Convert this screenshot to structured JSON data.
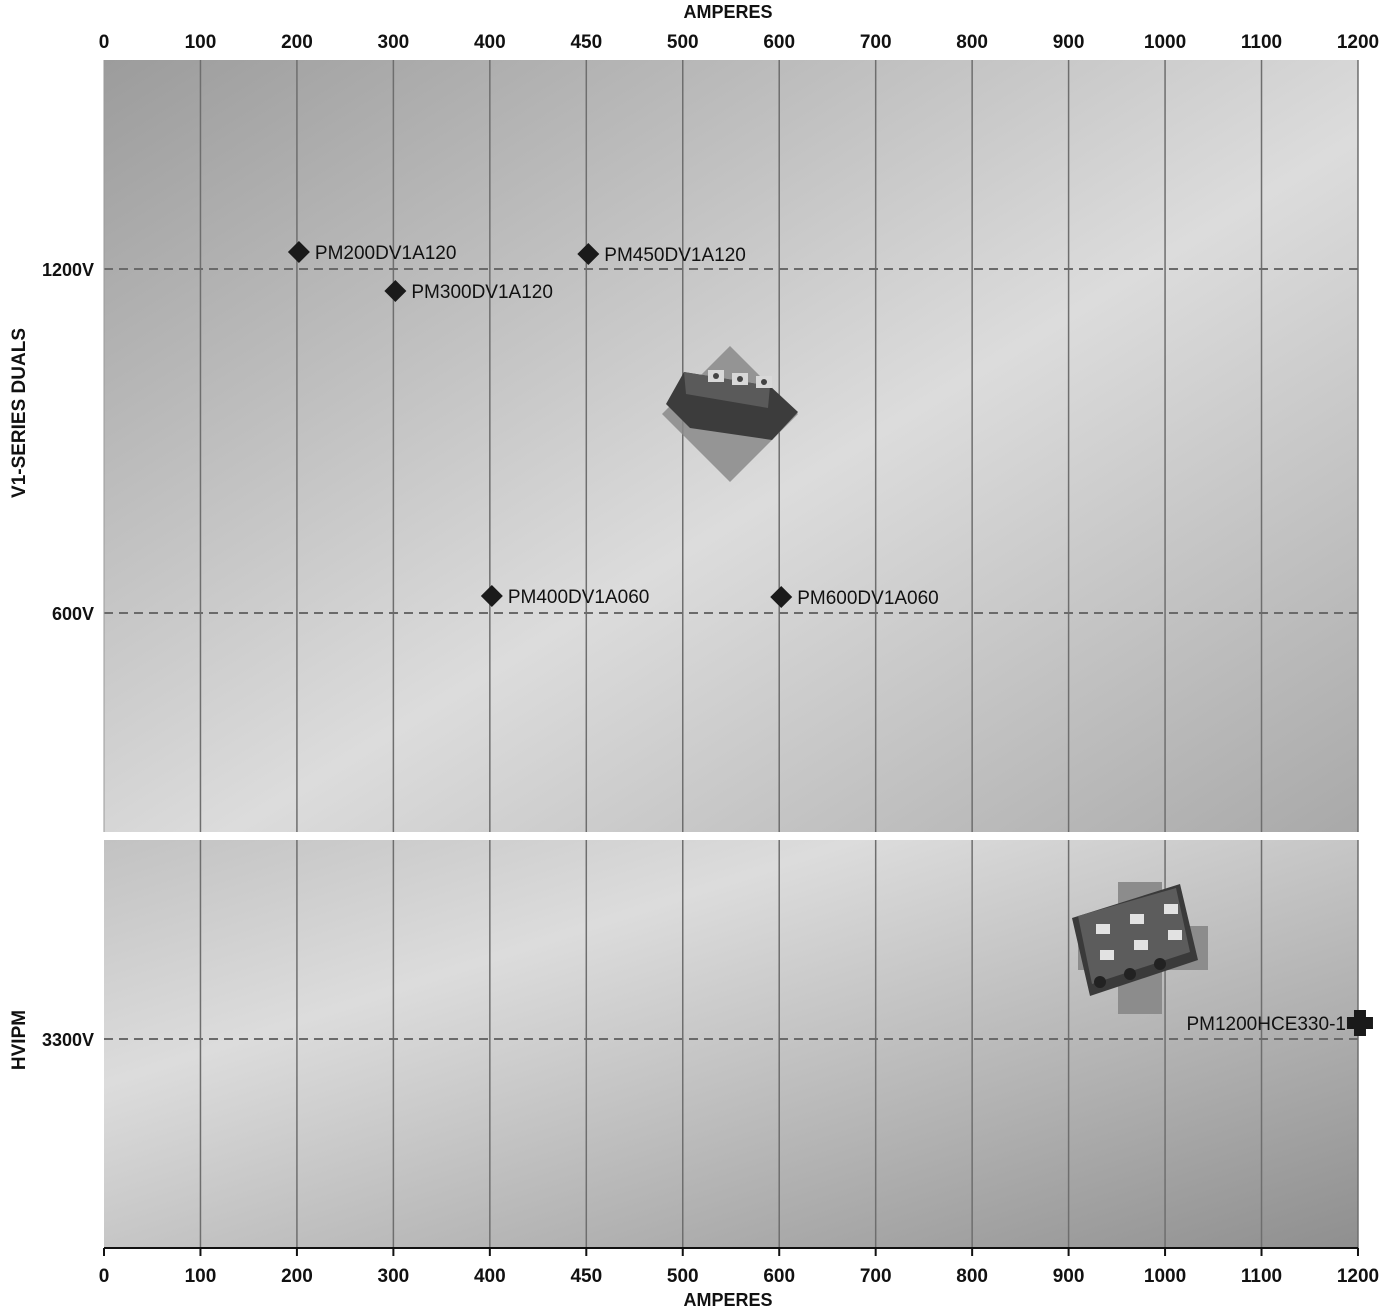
{
  "chart_data": {
    "type": "scatter",
    "x_axis": {
      "title": "AMPERES",
      "ticks": [
        0,
        100,
        200,
        300,
        400,
        450,
        500,
        600,
        700,
        800,
        900,
        1000,
        1100,
        1200
      ],
      "tick_labels": [
        "0",
        "100",
        "200",
        "300",
        "400",
        "450",
        "500",
        "600",
        "700",
        "800",
        "900",
        "1000",
        "1100",
        "1200"
      ],
      "scale": "categorical-evenly-spaced",
      "position": "top and bottom"
    },
    "panels": [
      {
        "title": "V1-SERIES DUALS",
        "voltage_levels": [
          {
            "label": "1200V",
            "value": 1200
          },
          {
            "label": "600V",
            "value": 600
          }
        ],
        "marker": "diamond",
        "points": [
          {
            "label": "PM200DV1A120",
            "amperes": 200,
            "voltage": 1200
          },
          {
            "label": "PM300DV1A120",
            "amperes": 300,
            "voltage": 1200
          },
          {
            "label": "PM450DV1A120",
            "amperes": 450,
            "voltage": 1200
          },
          {
            "label": "PM400DV1A060",
            "amperes": 400,
            "voltage": 600
          },
          {
            "label": "PM600DV1A060",
            "amperes": 600,
            "voltage": 600
          }
        ],
        "image": "ipm-dual-module-photo"
      },
      {
        "title": "HVIPM",
        "voltage_levels": [
          {
            "label": "3300V",
            "value": 3300
          }
        ],
        "marker": "cross",
        "points": [
          {
            "label": "PM1200HCE330-1",
            "amperes": 1200,
            "voltage": 3300
          }
        ],
        "image": "hvipm-module-photo"
      }
    ],
    "grid": {
      "vertical": true,
      "horizontal": "dashed at voltage levels"
    },
    "colors": {
      "marker": "#1a1a1a",
      "grid": "#6e6e6e",
      "background": "#c8c8c8"
    }
  }
}
